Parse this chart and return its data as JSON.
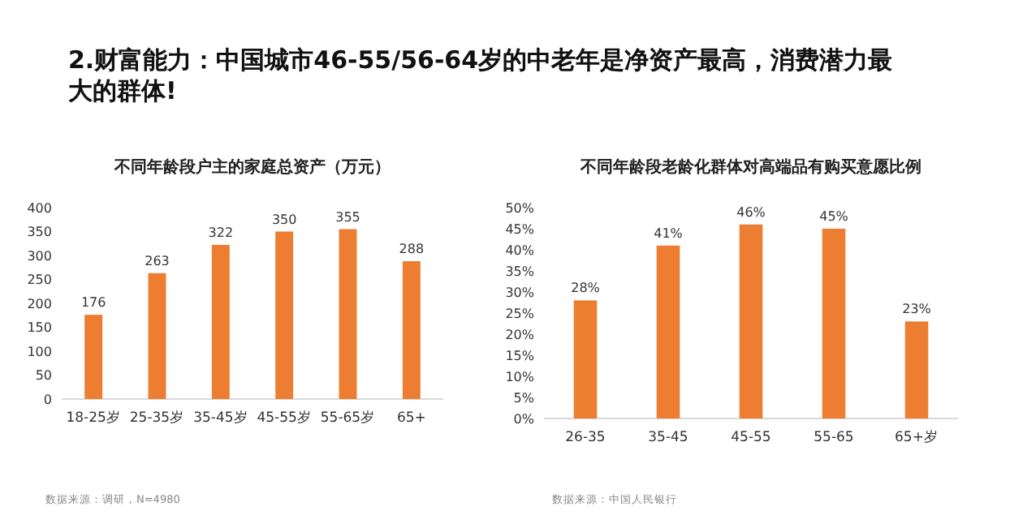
{
  "chart_data": [
    {
      "type": "bar",
      "title": "不同年龄段户主的家庭总资产（万元）",
      "categories": [
        "18-25岁",
        "25-35岁",
        "35-45岁",
        "45-55岁",
        "55-65岁",
        "65+"
      ],
      "values": [
        176,
        263,
        322,
        350,
        355,
        288
      ],
      "color": "#ed7d31",
      "ylim": [
        0,
        400
      ],
      "yticks": [
        0,
        50,
        100,
        150,
        200,
        250,
        300,
        350,
        400
      ],
      "data_labels": true,
      "grid": false,
      "annotations": [
        "2.财富能力：中国城市46-55/56-64岁的中老年是净资产最高，消费潜力最大的群体!",
        "数据来源：调研，N=4980"
      ]
    },
    {
      "type": "bar",
      "title": "不同年龄段老龄化群体对高端品有购买意愿比例",
      "categories": [
        "26-35",
        "35-45",
        "45-55",
        "55-65",
        "65+岁"
      ],
      "values": [
        28,
        41,
        46,
        45,
        23
      ],
      "value_labels": [
        "28%",
        "41%",
        "46%",
        "45%",
        "23%"
      ],
      "color": "#ed7d31",
      "ylim": [
        0,
        50
      ],
      "yticks": [
        {
          "value": 0,
          "label": "0%"
        },
        {
          "value": 5,
          "label": "5%"
        },
        {
          "value": 10,
          "label": "10%"
        },
        {
          "value": 15,
          "label": "15%"
        },
        {
          "value": 20,
          "label": "20%"
        },
        {
          "value": 25,
          "label": "25%"
        },
        {
          "value": 30,
          "label": "30%"
        },
        {
          "value": 35,
          "label": "35%"
        },
        {
          "value": 40,
          "label": "40%"
        },
        {
          "value": 45,
          "label": "45%"
        },
        {
          "value": 50,
          "label": "50%"
        }
      ],
      "grid": false,
      "annotations": [
        "数据来源：中国人民银行"
      ]
    }
  ]
}
